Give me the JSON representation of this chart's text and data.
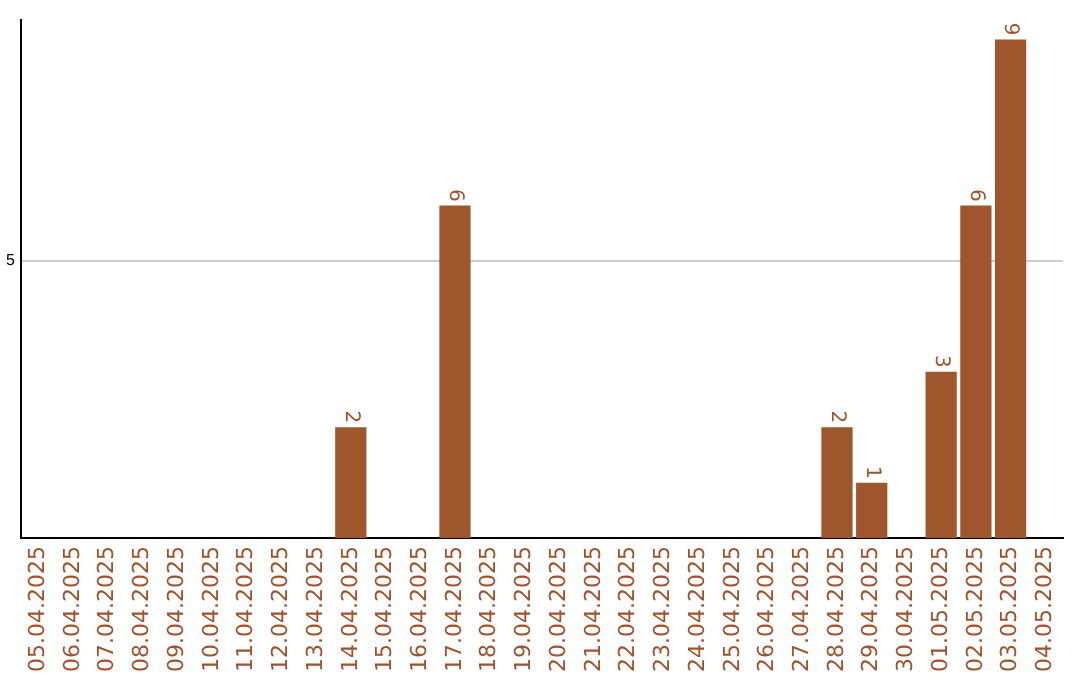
{
  "chart_data": {
    "type": "bar",
    "categories": [
      "05.04.2025",
      "06.04.2025",
      "07.04.2025",
      "08.04.2025",
      "09.04.2025",
      "10.04.2025",
      "11.04.2025",
      "12.04.2025",
      "13.04.2025",
      "14.04.2025",
      "15.04.2025",
      "16.04.2025",
      "17.04.2025",
      "18.04.2025",
      "19.04.2025",
      "20.04.2025",
      "21.04.2025",
      "22.04.2025",
      "23.04.2025",
      "24.04.2025",
      "25.04.2025",
      "26.04.2025",
      "27.04.2025",
      "28.04.2025",
      "29.04.2025",
      "30.04.2025",
      "01.05.2025",
      "02.05.2025",
      "03.05.2025",
      "04.05.2025"
    ],
    "values": [
      0,
      0,
      0,
      0,
      0,
      0,
      0,
      0,
      0,
      2,
      0,
      0,
      6,
      0,
      0,
      0,
      0,
      0,
      0,
      0,
      0,
      0,
      0,
      2,
      1,
      0,
      3,
      6,
      9,
      0
    ],
    "value_labels": [
      null,
      null,
      null,
      null,
      null,
      null,
      null,
      null,
      null,
      "2",
      null,
      null,
      "6",
      null,
      null,
      null,
      null,
      null,
      null,
      null,
      null,
      null,
      null,
      "2",
      "1",
      null,
      "3",
      "6",
      "9",
      null
    ],
    "color": "#a0562c",
    "ylim": [
      0,
      9.35
    ],
    "yticks": [
      5
    ],
    "grid": "y",
    "legend": false
  }
}
